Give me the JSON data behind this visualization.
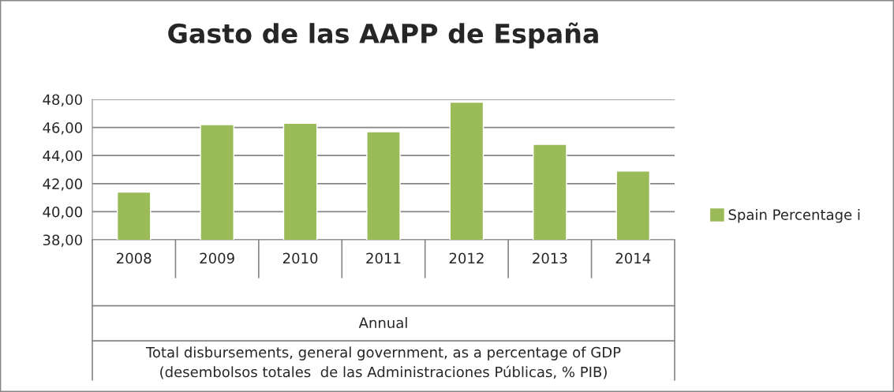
{
  "chart_data": {
    "type": "bar",
    "title": "Gasto de las AAPP de España",
    "categories": [
      "2008",
      "2009",
      "2010",
      "2011",
      "2012",
      "2013",
      "2014"
    ],
    "series": [
      {
        "name": "Spain Percentage i",
        "color": "#9bbb59",
        "values": [
          41.4,
          46.2,
          46.3,
          45.7,
          47.8,
          44.8,
          42.9
        ]
      }
    ],
    "ylim": [
      38,
      48
    ],
    "yticks": [
      {
        "value": 38,
        "label": "38,00"
      },
      {
        "value": 40,
        "label": "40,00"
      },
      {
        "value": 42,
        "label": "42,00"
      },
      {
        "value": 44,
        "label": "44,00"
      },
      {
        "value": 46,
        "label": "46,00"
      },
      {
        "value": 48,
        "label": "48,00"
      }
    ],
    "xlabel": "Annual",
    "annotations": [
      "Total disbursements, general government, as a percentage of GDP",
      "(desembolsos totales  de las Administraciones Públicas, % PIB)"
    ],
    "grid": "y",
    "legend": "right"
  }
}
